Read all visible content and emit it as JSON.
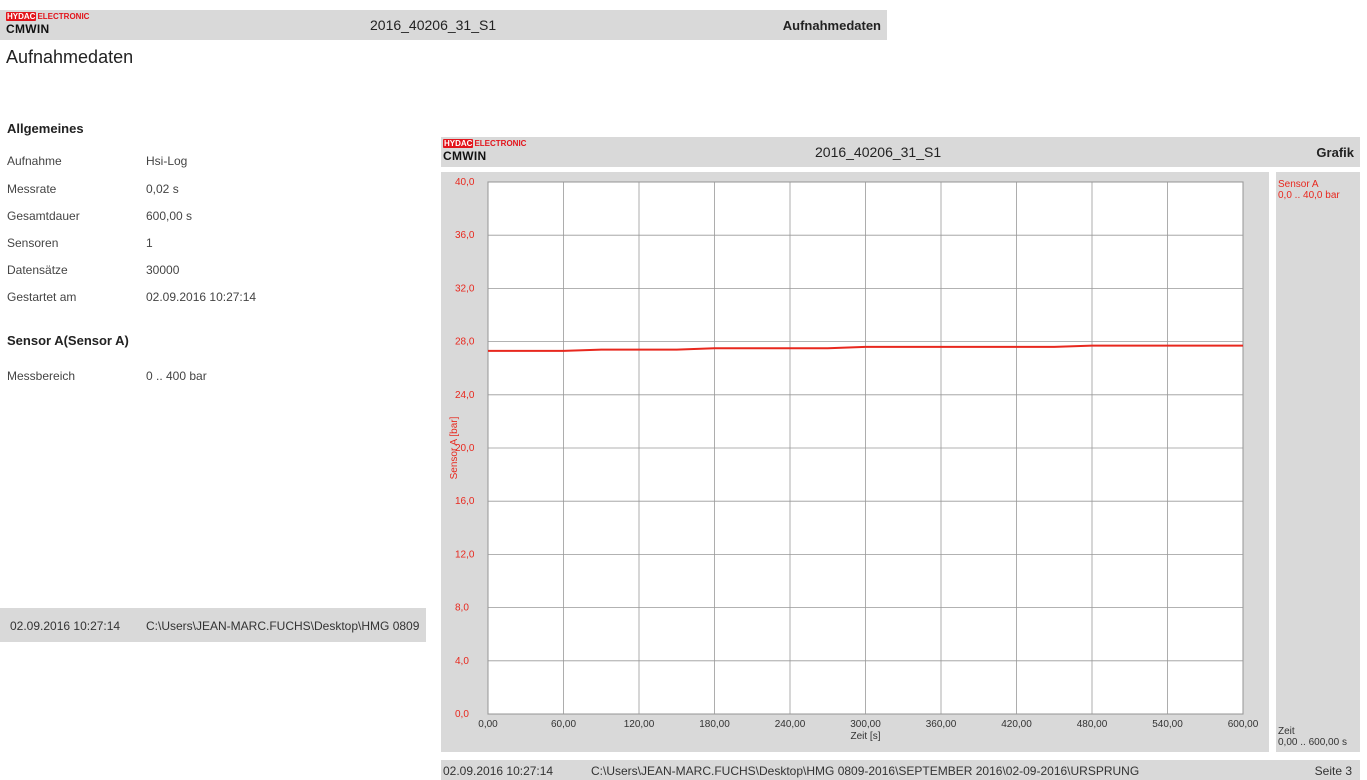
{
  "left_page": {
    "header": {
      "logo_brand": "HYDAC",
      "logo_sub": "ELECTRONIC",
      "logo_product": "CMWIN",
      "file_title": "2016_40206_31_S1",
      "section_title": "Aufnahmedaten"
    },
    "heading": "Aufnahmedaten",
    "general": {
      "title": "Allgemeines",
      "rows": [
        {
          "label": "Aufnahme",
          "value": "Hsi-Log"
        },
        {
          "label": "Messrate",
          "value": "0,02 s"
        },
        {
          "label": "Gesamtdauer",
          "value": "600,00 s"
        },
        {
          "label": "Sensoren",
          "value": "1"
        },
        {
          "label": "Datensätze",
          "value": "30000"
        },
        {
          "label": "Gestartet am",
          "value": "02.09.2016 10:27:14"
        }
      ]
    },
    "sensor": {
      "title": "Sensor A(Sensor A)",
      "rows": [
        {
          "label": "Messbereich",
          "value": "0 .. 400 bar"
        }
      ]
    },
    "footer": {
      "datetime": "02.09.2016 10:27:14",
      "path": "C:\\Users\\JEAN-MARC.FUCHS\\Desktop\\HMG 0809"
    }
  },
  "right_page": {
    "header": {
      "logo_brand": "HYDAC",
      "logo_sub": "ELECTRONIC",
      "logo_product": "CMWIN",
      "file_title": "2016_40206_31_S1",
      "section_title": "Grafik"
    },
    "side_panel": {
      "sensor_name": "Sensor A",
      "sensor_range": "0,0 .. 40,0 bar",
      "axis_name": "Zeit",
      "axis_range": "0,00 .. 600,00 s"
    },
    "footer": {
      "datetime": "02.09.2016 10:27:14",
      "path": "C:\\Users\\JEAN-MARC.FUCHS\\Desktop\\HMG 0809-2016\\SEPTEMBER 2016\\02-09-2016\\URSPRUNG",
      "page": "Seite 3"
    }
  },
  "colors": {
    "series": "#e8281e",
    "brand_red": "#e3141b",
    "panel_gray": "#d9d9d9",
    "grid": "#999999"
  },
  "chart_data": {
    "type": "line",
    "xlabel": "Zeit [s]",
    "ylabel": "Sensor A [bar]",
    "xlim": [
      0,
      600
    ],
    "ylim": [
      0,
      40
    ],
    "x_ticks": [
      "0,00",
      "60,00",
      "120,00",
      "180,00",
      "240,00",
      "300,00",
      "360,00",
      "420,00",
      "480,00",
      "540,00",
      "600,00"
    ],
    "y_ticks": [
      "0,0",
      "4,0",
      "8,0",
      "12,0",
      "16,0",
      "20,0",
      "24,0",
      "28,0",
      "32,0",
      "36,0",
      "40,0"
    ],
    "grid": true,
    "series": [
      {
        "name": "Sensor A",
        "x": [
          0,
          30,
          60,
          90,
          120,
          150,
          180,
          210,
          240,
          270,
          300,
          330,
          360,
          390,
          420,
          450,
          480,
          510,
          540,
          570,
          600
        ],
        "y": [
          27.3,
          27.3,
          27.3,
          27.4,
          27.4,
          27.4,
          27.5,
          27.5,
          27.5,
          27.5,
          27.6,
          27.6,
          27.6,
          27.6,
          27.6,
          27.6,
          27.7,
          27.7,
          27.7,
          27.7,
          27.7
        ]
      }
    ]
  }
}
